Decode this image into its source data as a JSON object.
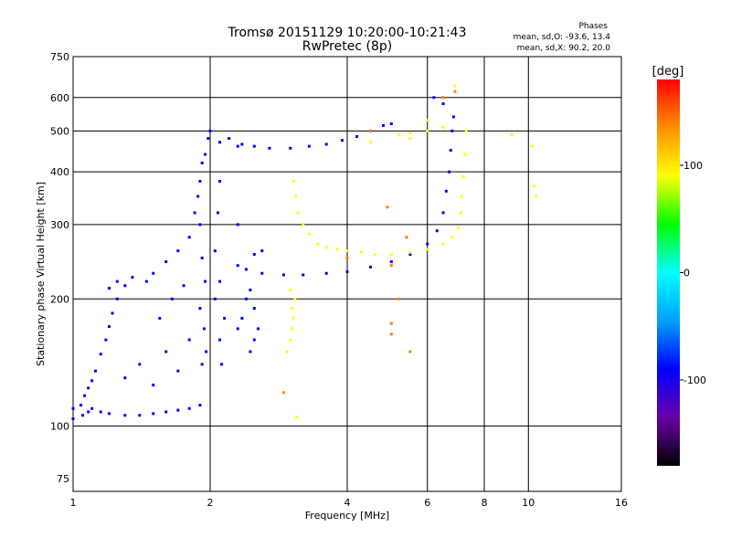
{
  "chart_data": {
    "type": "scatter",
    "title": "Tromsø 20151129 10:20:00-10:21:43",
    "subtitle": "RwPretec (8p)",
    "xlabel": "Frequency [MHz]",
    "ylabel": "Stationary phase Virtual Height [km]",
    "x_scale": "log",
    "y_scale": "log",
    "xlim": [
      1,
      16
    ],
    "ylim": [
      70,
      750
    ],
    "x_ticks": [
      1,
      2,
      4,
      6,
      8,
      10,
      16
    ],
    "y_ticks": [
      75,
      100,
      200,
      300,
      400,
      500,
      600,
      750
    ],
    "grid": true,
    "stats": {
      "header": "Phases",
      "line1": "mean, sd,O:  -93.6, 13.4",
      "line2": "mean, sd,X:   90.2, 20.0"
    },
    "colorbar": {
      "label": "[deg]",
      "range": [
        -180,
        180
      ],
      "ticks": [
        -100,
        0,
        100
      ],
      "colors": [
        "#000000",
        "#6a00a8",
        "#0000ff",
        "#00a0ff",
        "#00ffff",
        "#00ff00",
        "#ffff00",
        "#ff9000",
        "#ff0000"
      ]
    },
    "series": [
      {
        "name": "",
        "phase": -90,
        "points": [
          [
            1.0,
            104
          ],
          [
            1.05,
            106
          ],
          [
            1.08,
            108
          ],
          [
            1.1,
            110
          ],
          [
            1.15,
            108
          ],
          [
            1.2,
            107
          ],
          [
            1.3,
            106
          ],
          [
            1.4,
            106
          ],
          [
            1.5,
            107
          ],
          [
            1.6,
            108
          ],
          [
            1.7,
            109
          ],
          [
            1.8,
            110
          ],
          [
            1.9,
            112
          ],
          [
            1.0,
            110
          ],
          [
            1.04,
            112
          ],
          [
            1.06,
            118
          ],
          [
            1.08,
            123
          ],
          [
            1.1,
            128
          ],
          [
            1.12,
            135
          ],
          [
            1.15,
            148
          ],
          [
            1.18,
            160
          ],
          [
            1.2,
            172
          ],
          [
            1.22,
            185
          ],
          [
            1.25,
            200
          ],
          [
            1.2,
            212
          ],
          [
            1.25,
            220
          ],
          [
            1.3,
            215
          ],
          [
            1.35,
            225
          ],
          [
            1.3,
            130
          ],
          [
            1.4,
            140
          ],
          [
            1.5,
            125
          ],
          [
            1.6,
            150
          ],
          [
            1.7,
            135
          ],
          [
            1.8,
            160
          ],
          [
            1.45,
            220
          ],
          [
            1.5,
            230
          ],
          [
            1.6,
            245
          ],
          [
            1.7,
            260
          ],
          [
            1.75,
            215
          ],
          [
            1.65,
            200
          ],
          [
            1.55,
            180
          ],
          [
            1.8,
            280
          ],
          [
            1.85,
            320
          ],
          [
            1.9,
            380
          ],
          [
            1.95,
            440
          ],
          [
            1.98,
            480
          ],
          [
            2.0,
            500
          ],
          [
            1.92,
            420
          ],
          [
            1.88,
            350
          ],
          [
            1.9,
            300
          ],
          [
            1.92,
            250
          ],
          [
            1.95,
            220
          ],
          [
            1.9,
            190
          ],
          [
            1.94,
            170
          ],
          [
            1.96,
            150
          ],
          [
            1.92,
            140
          ],
          [
            2.05,
            200
          ],
          [
            2.1,
            220
          ],
          [
            2.15,
            180
          ],
          [
            2.1,
            160
          ],
          [
            2.12,
            140
          ],
          [
            2.05,
            260
          ],
          [
            2.08,
            320
          ],
          [
            2.1,
            380
          ],
          [
            2.1,
            470
          ],
          [
            2.2,
            480
          ],
          [
            2.3,
            460
          ],
          [
            2.35,
            465
          ],
          [
            2.5,
            460
          ],
          [
            2.7,
            455
          ],
          [
            3.0,
            455
          ],
          [
            3.3,
            460
          ],
          [
            3.6,
            465
          ],
          [
            3.9,
            475
          ],
          [
            4.2,
            485
          ],
          [
            4.5,
            500
          ],
          [
            4.8,
            515
          ],
          [
            5.0,
            520
          ],
          [
            2.3,
            240
          ],
          [
            2.4,
            235
          ],
          [
            2.6,
            230
          ],
          [
            2.9,
            228
          ],
          [
            3.2,
            228
          ],
          [
            3.6,
            230
          ],
          [
            4.0,
            232
          ],
          [
            4.5,
            238
          ],
          [
            5.0,
            245
          ],
          [
            5.5,
            255
          ],
          [
            6.0,
            270
          ],
          [
            6.3,
            290
          ],
          [
            6.5,
            320
          ],
          [
            6.6,
            360
          ],
          [
            6.7,
            400
          ],
          [
            6.75,
            450
          ],
          [
            6.8,
            500
          ],
          [
            6.85,
            540
          ],
          [
            2.45,
            150
          ],
          [
            2.5,
            160
          ],
          [
            2.55,
            170
          ],
          [
            2.5,
            190
          ],
          [
            2.45,
            210
          ],
          [
            2.35,
            180
          ],
          [
            2.3,
            170
          ],
          [
            2.4,
            200
          ],
          [
            2.6,
            260
          ],
          [
            2.5,
            255
          ],
          [
            2.3,
            300
          ],
          [
            6.2,
            600
          ],
          [
            6.5,
            580
          ]
        ]
      },
      {
        "name": "",
        "phase": 90,
        "points": [
          [
            3.05,
            380
          ],
          [
            3.08,
            350
          ],
          [
            3.12,
            320
          ],
          [
            3.2,
            300
          ],
          [
            3.3,
            285
          ],
          [
            3.45,
            270
          ],
          [
            3.6,
            265
          ],
          [
            3.8,
            262
          ],
          [
            4.0,
            260
          ],
          [
            4.3,
            258
          ],
          [
            4.6,
            255
          ],
          [
            5.0,
            255
          ],
          [
            5.5,
            258
          ],
          [
            6.0,
            262
          ],
          [
            6.5,
            270
          ],
          [
            6.8,
            280
          ],
          [
            7.0,
            295
          ],
          [
            7.1,
            320
          ],
          [
            7.15,
            350
          ],
          [
            7.2,
            390
          ],
          [
            7.25,
            440
          ],
          [
            7.3,
            500
          ],
          [
            3.0,
            210
          ],
          [
            3.02,
            190
          ],
          [
            3.05,
            180
          ],
          [
            3.03,
            170
          ],
          [
            3.0,
            160
          ],
          [
            2.95,
            150
          ],
          [
            3.07,
            200
          ],
          [
            3.1,
            105
          ],
          [
            5.2,
            490
          ],
          [
            5.5,
            495
          ],
          [
            6.0,
            500
          ],
          [
            6.5,
            510
          ],
          [
            6.9,
            640
          ],
          [
            10.2,
            460
          ],
          [
            10.3,
            370
          ],
          [
            10.4,
            350
          ],
          [
            4.5,
            470
          ],
          [
            5.5,
            480
          ],
          [
            6.0,
            530
          ],
          [
            9.2,
            490
          ]
        ]
      },
      {
        "name": "",
        "phase": 140,
        "points": [
          [
            2.9,
            120
          ],
          [
            5.0,
            175
          ],
          [
            5.0,
            165
          ],
          [
            5.5,
            150
          ],
          [
            5.0,
            240
          ],
          [
            5.4,
            280
          ],
          [
            6.5,
            600
          ],
          [
            6.9,
            620
          ],
          [
            4.9,
            330
          ],
          [
            5.2,
            200
          ],
          [
            4.0,
            250
          ],
          [
            4.5,
            500
          ]
        ]
      }
    ]
  }
}
